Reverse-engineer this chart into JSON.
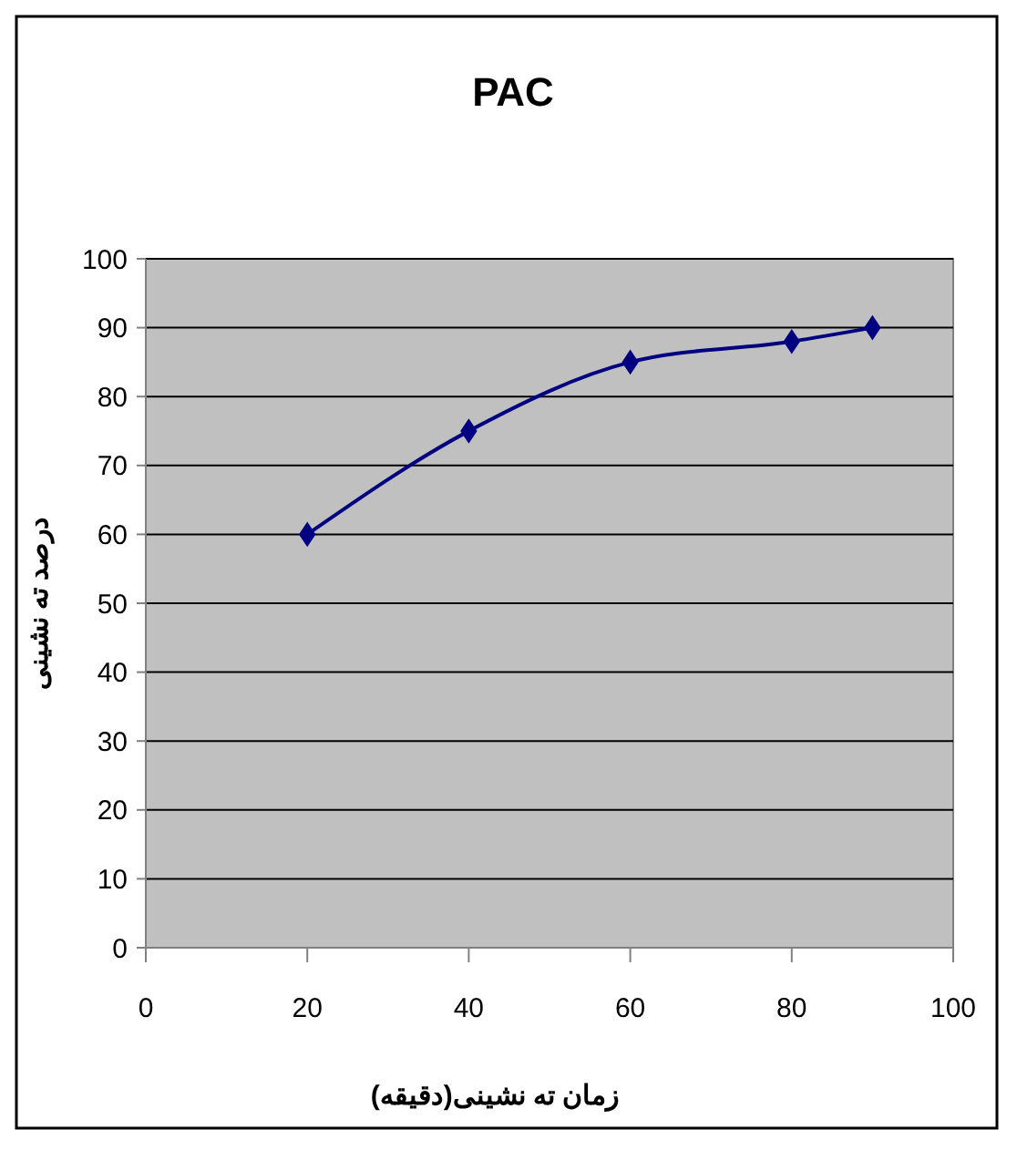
{
  "chart_data": {
    "type": "line",
    "title": "PAC",
    "xlabel": "زمان ته نشینی(دقیقه)",
    "ylabel": "درصد ته نشینی",
    "x": [
      20,
      40,
      60,
      80,
      90
    ],
    "series": [
      {
        "color": "#000080",
        "values": [
          60,
          75,
          85,
          88,
          90
        ]
      }
    ],
    "xlim": [
      0,
      100
    ],
    "xticks": [
      0,
      20,
      40,
      60,
      80,
      100
    ],
    "ylim": [
      0,
      100
    ],
    "yticks": [
      0,
      10,
      20,
      30,
      40,
      50,
      60,
      70,
      80,
      90,
      100
    ],
    "grid": "y",
    "marker": "diamond",
    "line_style": "solid"
  }
}
